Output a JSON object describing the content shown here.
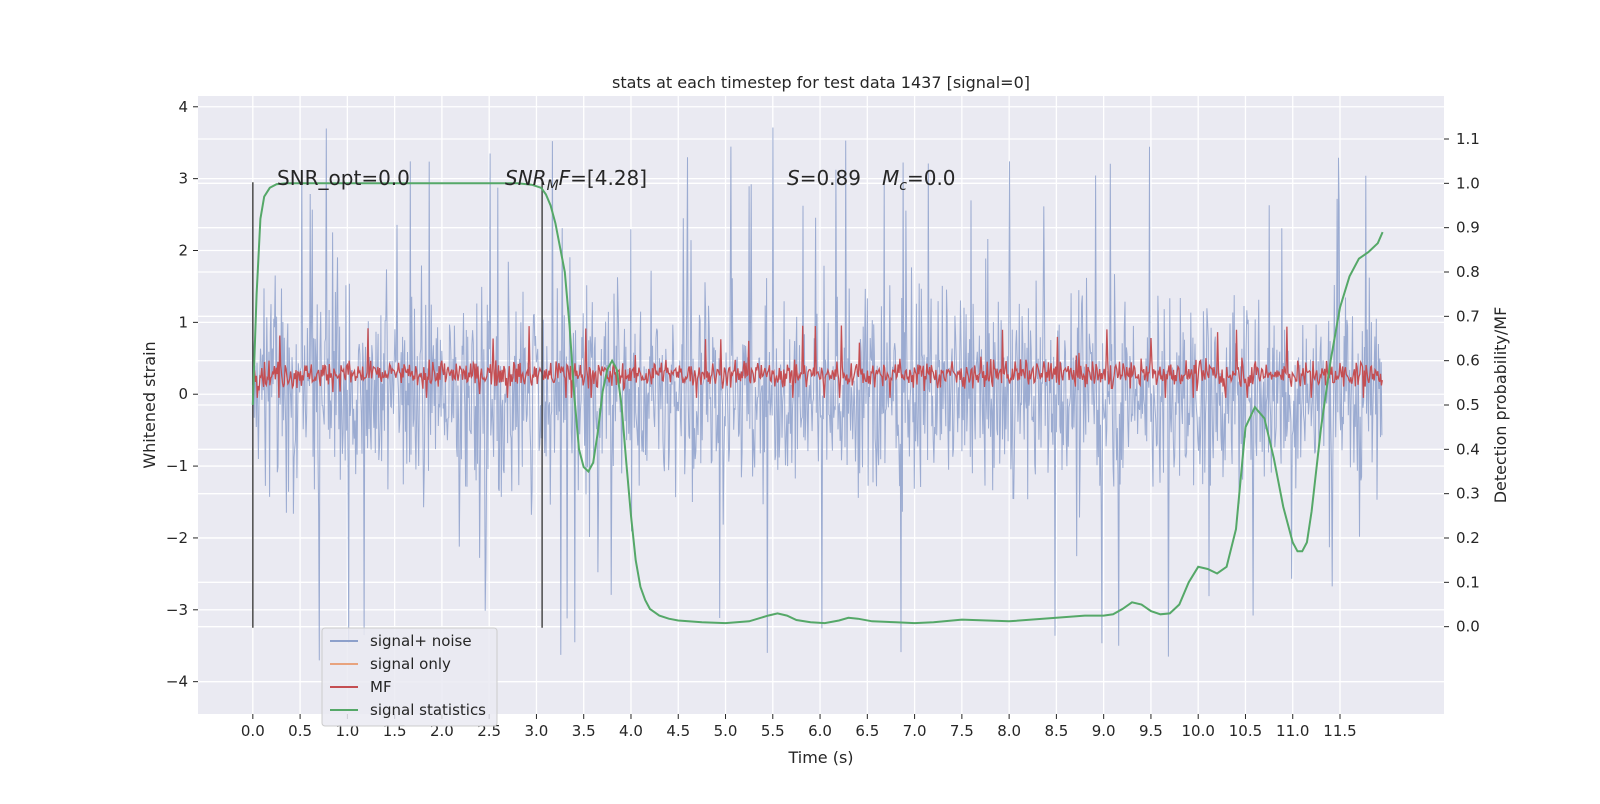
{
  "chart_data": {
    "type": "line",
    "title": "stats at each timestep for test data 1437 [signal=0]",
    "xlabel": "Time (s)",
    "ylabel_left": "Whitened strain",
    "ylabel_right": "Detection probability/MF",
    "xlim": [
      -0.58,
      12.6
    ],
    "ylim_left": [
      -4.45,
      4.15
    ],
    "ylim_right": [
      -0.197,
      1.197
    ],
    "x_ticks": [
      "0.0",
      "0.5",
      "1.0",
      "1.5",
      "2.0",
      "2.5",
      "3.0",
      "3.5",
      "4.0",
      "4.5",
      "5.0",
      "5.5",
      "6.0",
      "6.5",
      "7.0",
      "7.5",
      "8.0",
      "8.5",
      "9.0",
      "9.5",
      "10.0",
      "10.5",
      "11.0",
      "11.5"
    ],
    "y_ticks_left": [
      "4",
      "3",
      "2",
      "1",
      "0",
      "−1",
      "−2",
      "−3",
      "−4"
    ],
    "y_ticks_right": [
      "0.0",
      "0.1",
      "0.2",
      "0.3",
      "0.4",
      "0.5",
      "0.6",
      "0.7",
      "0.8",
      "0.9",
      "1.0",
      "1.1"
    ],
    "grid": true,
    "annotations": {
      "snr_opt": "SNR_opt=0.0",
      "snr_mf_label": "SNR",
      "snr_mf_sub": "M",
      "snr_mf_label2": "F",
      "snr_mf_value": "=[4.28]",
      "s_label": "S",
      "s_value": "=0.89",
      "mc_label": "M",
      "mc_sub": "c",
      "mc_value": "=0.0"
    },
    "vertical_markers": [
      0.0,
      3.06
    ],
    "legend_placement": "lower-left",
    "series": [
      {
        "name": "signal+ noise",
        "color": "#8da0cb",
        "axis": "left",
        "x_range": [
          0.0,
          11.95
        ],
        "envelope_typical": [
          -2.2,
          2.4
        ],
        "envelope_extreme": [
          -3.95,
          3.75
        ]
      },
      {
        "name": "signal only",
        "color": "#e8a37e",
        "axis": "left",
        "values": []
      },
      {
        "name": "MF",
        "color": "#c44e52",
        "axis": "left",
        "x_range": [
          0.0,
          11.95
        ],
        "envelope_typical": [
          0.0,
          0.6
        ],
        "envelope_extreme": [
          -0.05,
          1.0
        ]
      },
      {
        "name": "signal statistics",
        "color": "#55a868",
        "axis": "right",
        "x": [
          0.0,
          0.04,
          0.08,
          0.12,
          0.18,
          0.25,
          0.35,
          0.5,
          1.0,
          1.5,
          2.0,
          2.5,
          2.8,
          2.95,
          3.05,
          3.1,
          3.15,
          3.2,
          3.3,
          3.35,
          3.4,
          3.45,
          3.5,
          3.55,
          3.6,
          3.65,
          3.7,
          3.75,
          3.8,
          3.85,
          3.9,
          3.95,
          4.0,
          4.05,
          4.1,
          4.15,
          4.2,
          4.3,
          4.4,
          4.5,
          4.75,
          5.0,
          5.25,
          5.45,
          5.55,
          5.65,
          5.75,
          5.9,
          6.05,
          6.2,
          6.3,
          6.4,
          6.55,
          6.8,
          7.0,
          7.2,
          7.5,
          8.0,
          8.5,
          8.8,
          9.0,
          9.1,
          9.2,
          9.3,
          9.4,
          9.5,
          9.6,
          9.7,
          9.8,
          9.9,
          10.0,
          10.1,
          10.2,
          10.3,
          10.4,
          10.5,
          10.6,
          10.7,
          10.8,
          10.9,
          11.0,
          11.05,
          11.1,
          11.15,
          11.2,
          11.3,
          11.4,
          11.5,
          11.6,
          11.7,
          11.8,
          11.9,
          11.95
        ],
        "values": [
          0.5,
          0.75,
          0.92,
          0.97,
          0.99,
          0.998,
          1.0,
          1.0,
          1.0,
          1.0,
          1.0,
          1.0,
          1.0,
          0.997,
          0.99,
          0.975,
          0.95,
          0.91,
          0.8,
          0.68,
          0.52,
          0.4,
          0.36,
          0.35,
          0.37,
          0.44,
          0.53,
          0.58,
          0.6,
          0.58,
          0.5,
          0.37,
          0.25,
          0.15,
          0.09,
          0.06,
          0.04,
          0.025,
          0.018,
          0.014,
          0.01,
          0.008,
          0.012,
          0.025,
          0.03,
          0.025,
          0.015,
          0.01,
          0.008,
          0.014,
          0.02,
          0.018,
          0.012,
          0.01,
          0.008,
          0.01,
          0.016,
          0.012,
          0.02,
          0.025,
          0.025,
          0.028,
          0.04,
          0.055,
          0.05,
          0.035,
          0.028,
          0.03,
          0.05,
          0.1,
          0.135,
          0.13,
          0.12,
          0.135,
          0.22,
          0.45,
          0.495,
          0.47,
          0.38,
          0.27,
          0.19,
          0.17,
          0.17,
          0.19,
          0.26,
          0.45,
          0.6,
          0.72,
          0.79,
          0.83,
          0.845,
          0.865,
          0.89
        ]
      }
    ]
  }
}
